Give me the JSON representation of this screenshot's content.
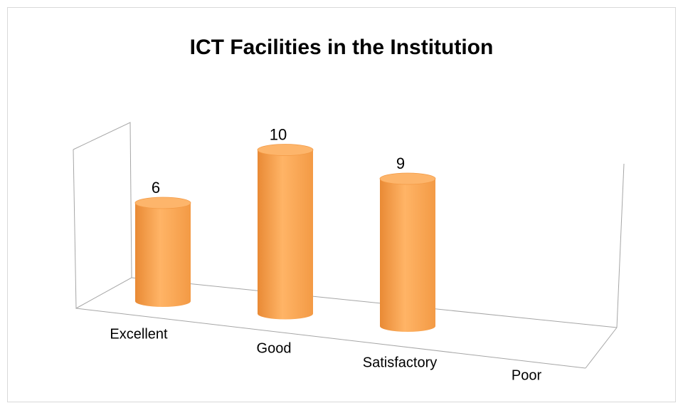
{
  "chart_data": {
    "type": "bar3d_cylinder",
    "title": "ICT Facilities in the Institution",
    "categories": [
      "Excellent",
      "Good",
      "Satisfactory",
      "Poor"
    ],
    "values": [
      6,
      10,
      9,
      null
    ],
    "color": "#f79646"
  }
}
